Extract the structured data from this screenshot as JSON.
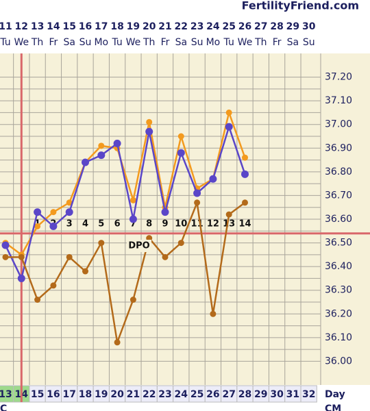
{
  "site": "FertilityFriend.com",
  "chart_data": {
    "type": "line",
    "categories": [
      "11",
      "12",
      "13",
      "14",
      "15",
      "16",
      "17",
      "18",
      "19",
      "20",
      "21",
      "22",
      "23",
      "24",
      "25",
      "26",
      "27",
      "28",
      "29",
      "30"
    ],
    "weekdays": [
      "Tu",
      "We",
      "Th",
      "Fr",
      "Sa",
      "Su",
      "Mo",
      "Tu",
      "We",
      "Th",
      "Fr",
      "Sa",
      "Su",
      "Mo",
      "Tu",
      "We",
      "Th",
      "Fr",
      "Sa",
      "Su"
    ],
    "cycle_days": [
      "13",
      "14",
      "15",
      "16",
      "17",
      "18",
      "19",
      "20",
      "21",
      "22",
      "23",
      "24",
      "25",
      "26",
      "27",
      "28",
      "29",
      "30",
      "31",
      "32"
    ],
    "cycle_day_fills": [
      "#9ed98c",
      "#9ed98c",
      "#ececf8",
      "#ececf8",
      "#ececf8",
      "#ececf8",
      "#ececf8",
      "#ececf8",
      "#ececf8",
      "#ececf8",
      "#ececf8",
      "#ececf8",
      "#ececf8",
      "#ececf8",
      "#ececf8",
      "#ececf8",
      "#ececf8",
      "#ececf8",
      "#ececf8",
      "#ececf8"
    ],
    "cycle_day_label": "Day",
    "bottom_row": [
      "C",
      "CM"
    ],
    "dpo": [
      null,
      null,
      "1",
      "2",
      "3",
      "4",
      "5",
      "6",
      "7",
      "8",
      "9",
      "10",
      "11",
      "12",
      "13",
      "14",
      null,
      null,
      null,
      null
    ],
    "dpo_label": "DPO",
    "coverline": 36.54,
    "coverline_color": "#d9676a",
    "marker_category": "12",
    "series": [
      {
        "color": "#f39a1e",
        "values": [
          36.5,
          36.45,
          36.57,
          36.63,
          36.67,
          36.84,
          36.91,
          36.9,
          36.68,
          37.01,
          36.65,
          36.95,
          36.73,
          36.77,
          37.05,
          36.86,
          null,
          null,
          null,
          null
        ]
      },
      {
        "color": "#5a46c8",
        "values": [
          36.49,
          36.35,
          36.63,
          36.57,
          36.63,
          36.84,
          36.87,
          36.92,
          36.6,
          36.97,
          36.63,
          36.88,
          36.71,
          36.77,
          36.99,
          36.79,
          null,
          null,
          null,
          null
        ]
      },
      {
        "color": "#b36a1a",
        "values": [
          36.44,
          36.44,
          36.26,
          36.32,
          36.44,
          36.38,
          36.5,
          36.08,
          36.26,
          36.52,
          36.44,
          36.5,
          36.67,
          36.2,
          36.62,
          36.67,
          null,
          null,
          null,
          null
        ]
      }
    ],
    "ylim": [
      35.9,
      37.3
    ],
    "yticks": [
      {
        "value": 36.0,
        "label": "36.00"
      },
      {
        "value": 36.1,
        "label": "36.10"
      },
      {
        "value": 36.2,
        "label": "36.20"
      },
      {
        "value": 36.3,
        "label": "36.30"
      },
      {
        "value": 36.4,
        "label": "36.40"
      },
      {
        "value": 36.5,
        "label": "36.50"
      },
      {
        "value": 36.6,
        "label": "36.60"
      },
      {
        "value": 36.7,
        "label": "36.70"
      },
      {
        "value": 36.8,
        "label": "36.80"
      },
      {
        "value": 36.9,
        "label": "36.90"
      },
      {
        "value": 37.0,
        "label": "37.00"
      },
      {
        "value": 37.1,
        "label": "37.10"
      },
      {
        "value": 37.2,
        "label": "37.20"
      }
    ],
    "grid": true
  }
}
